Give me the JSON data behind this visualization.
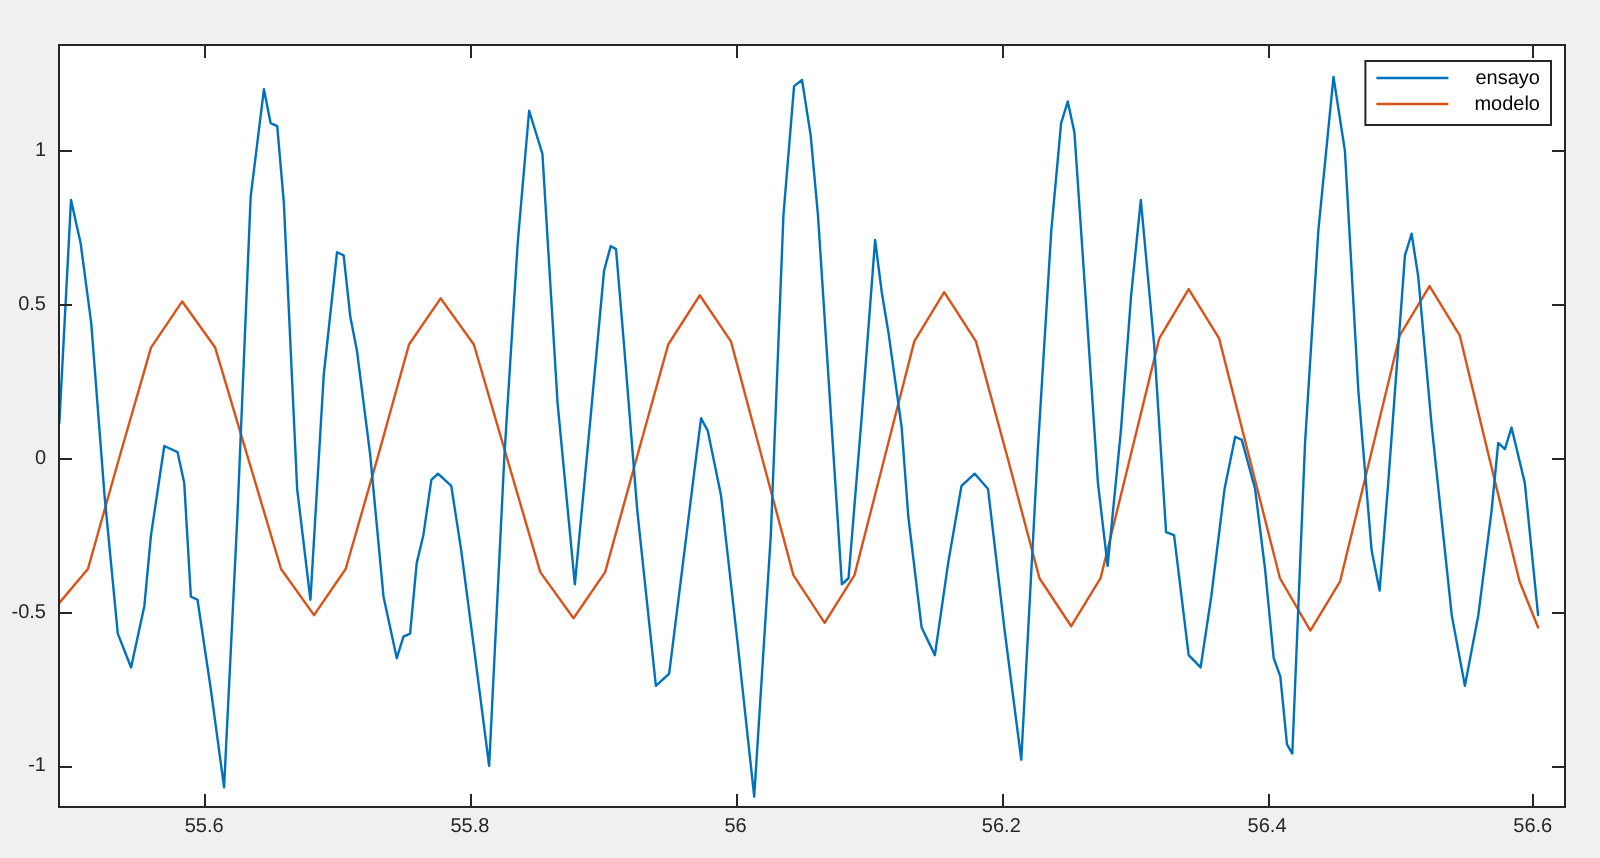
{
  "chart_data": {
    "type": "line",
    "xlim": [
      55.49,
      56.625
    ],
    "ylim": [
      -1.137,
      1.347
    ],
    "xticks": [
      55.6,
      55.8,
      56,
      56.2,
      56.4,
      56.6
    ],
    "yticks": [
      -1,
      -0.5,
      0,
      0.5,
      1
    ],
    "grid": false,
    "legend": "top right",
    "marker": "none",
    "series": [
      {
        "name": "ensayo",
        "color": "#0072bd",
        "x": [
          55.491,
          55.4998,
          55.507,
          55.515,
          55.525,
          55.535,
          55.545,
          55.555,
          55.56,
          55.57,
          55.58,
          55.585,
          55.59,
          55.595,
          55.605,
          55.615,
          55.625,
          55.635,
          55.645,
          55.65,
          55.655,
          55.66,
          55.67,
          55.68,
          55.69,
          55.7,
          55.705,
          55.71,
          55.715,
          55.725,
          55.735,
          55.745,
          55.75,
          55.755,
          55.76,
          55.765,
          55.771,
          55.776,
          55.786,
          55.7935,
          55.8035,
          55.8145,
          55.826,
          55.836,
          55.8446,
          55.8546,
          55.866,
          55.879,
          55.891,
          55.901,
          55.906,
          55.91,
          55.916,
          55.926,
          55.94,
          55.95,
          55.961,
          55.969,
          55.974,
          55.979,
          55.989,
          56.0015,
          56.014,
          56.0265,
          56.036,
          56.044,
          56.05,
          56.0565,
          56.062,
          56.08,
          56.085,
          56.095,
          56.105,
          56.11,
          56.115,
          56.125,
          56.13,
          56.14,
          56.15,
          56.16,
          56.17,
          56.18,
          56.19,
          56.2025,
          56.215,
          56.2275,
          56.2376,
          56.245,
          56.25,
          56.255,
          56.2627,
          56.2727,
          56.28,
          56.29,
          56.2977,
          56.305,
          56.315,
          56.324,
          56.33,
          56.341,
          56.35,
          56.358,
          56.368,
          56.376,
          56.381,
          56.391,
          56.3985,
          56.405,
          56.41,
          56.415,
          56.419,
          56.4286,
          56.4386,
          56.45,
          56.4586,
          56.4687,
          56.4787,
          56.4847,
          56.4912,
          56.5038,
          56.5088,
          56.5138,
          56.5238,
          56.539,
          56.5489,
          56.559,
          56.569,
          56.574,
          56.579,
          56.584,
          56.594,
          56.604
        ],
        "values": [
          0.115,
          0.84,
          0.7,
          0.44,
          -0.12,
          -0.57,
          -0.68,
          -0.48,
          -0.25,
          0.04,
          0.02,
          -0.08,
          -0.45,
          -0.46,
          -0.75,
          -1.07,
          -0.19,
          0.85,
          1.2,
          1.09,
          1.08,
          0.83,
          -0.1,
          -0.46,
          0.27,
          0.67,
          0.66,
          0.46,
          0.35,
          0.01,
          -0.45,
          -0.65,
          -0.58,
          -0.57,
          -0.34,
          -0.25,
          -0.07,
          -0.05,
          -0.09,
          -0.3,
          -0.63,
          -1.0,
          0.01,
          0.7,
          1.13,
          0.99,
          0.18,
          -0.41,
          0.14,
          0.61,
          0.69,
          0.68,
          0.37,
          -0.17,
          -0.74,
          -0.7,
          -0.32,
          -0.04,
          0.13,
          0.09,
          -0.12,
          -0.6,
          -1.1,
          -0.25,
          0.79,
          1.21,
          1.23,
          1.05,
          0.79,
          -0.41,
          -0.39,
          0.14,
          0.71,
          0.54,
          0.41,
          0.1,
          -0.19,
          -0.55,
          -0.64,
          -0.34,
          -0.09,
          -0.05,
          -0.1,
          -0.56,
          -0.98,
          0.03,
          0.74,
          1.09,
          1.16,
          1.06,
          0.57,
          -0.08,
          -0.35,
          0.09,
          0.53,
          0.84,
          0.37,
          -0.24,
          -0.25,
          -0.64,
          -0.68,
          -0.45,
          -0.1,
          0.07,
          0.06,
          -0.1,
          -0.36,
          -0.65,
          -0.71,
          -0.93,
          -0.96,
          0.05,
          0.74,
          1.24,
          1.0,
          0.22,
          -0.3,
          -0.43,
          -0.08,
          0.66,
          0.73,
          0.59,
          0.11,
          -0.51,
          -0.74,
          -0.51,
          -0.17,
          0.05,
          0.03,
          0.1,
          -0.08,
          -0.51
        ]
      },
      {
        "name": "modelo",
        "color": "#d95319",
        "x": [
          55.491,
          55.5125,
          55.536,
          55.56,
          55.5835,
          55.6083,
          55.6331,
          55.6579,
          55.6827,
          55.7065,
          55.7304,
          55.7542,
          55.778,
          55.803,
          55.828,
          55.853,
          55.878,
          55.9018,
          55.9255,
          55.9493,
          55.973,
          55.9965,
          56.02,
          56.0435,
          56.067,
          56.0895,
          56.112,
          56.1345,
          56.157,
          56.1809,
          56.2048,
          56.2287,
          56.2526,
          56.2747,
          56.2968,
          56.3189,
          56.341,
          56.3639,
          56.3868,
          56.4097,
          56.4326,
          56.455,
          56.4775,
          56.4999,
          56.5223,
          56.545,
          56.5673,
          56.59,
          56.604
        ],
        "values": [
          -0.47,
          -0.36,
          0,
          0.36,
          0.51,
          0.36,
          0,
          -0.36,
          -0.51,
          -0.36,
          0,
          0.37,
          0.52,
          0.37,
          0,
          -0.37,
          -0.52,
          -0.37,
          0,
          0.37,
          0.53,
          0.38,
          0,
          -0.38,
          -0.535,
          -0.38,
          0,
          0.38,
          0.54,
          0.38,
          0,
          -0.39,
          -0.546,
          -0.39,
          0,
          0.39,
          0.55,
          0.39,
          0,
          -0.39,
          -0.56,
          -0.4,
          0,
          0.4,
          0.56,
          0.4,
          0,
          -0.4,
          -0.55
        ]
      }
    ]
  }
}
